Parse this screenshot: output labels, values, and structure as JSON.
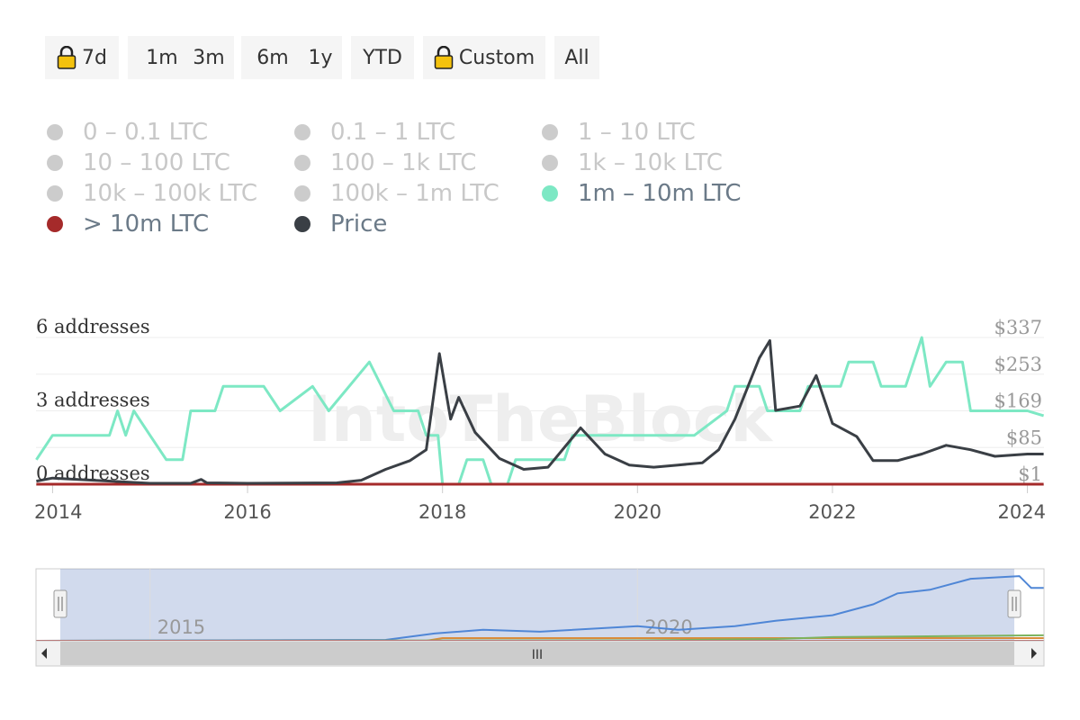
{
  "range_selector": {
    "buttons": [
      {
        "label": "7d",
        "locked": true
      },
      {
        "label": "1m",
        "locked": false
      },
      {
        "label": "3m",
        "locked": false
      },
      {
        "label": "6m",
        "locked": false
      },
      {
        "label": "1y",
        "locked": false
      },
      {
        "label": "YTD",
        "locked": false
      },
      {
        "label": "Custom",
        "locked": true
      },
      {
        "label": "All",
        "locked": false
      }
    ]
  },
  "legend": [
    {
      "label": "0 – 0.1 LTC",
      "color": "#cccccc",
      "enabled": false
    },
    {
      "label": "0.1 – 1 LTC",
      "color": "#cccccc",
      "enabled": false
    },
    {
      "label": "1 – 10 LTC",
      "color": "#cccccc",
      "enabled": false
    },
    {
      "label": "10 – 100 LTC",
      "color": "#cccccc",
      "enabled": false
    },
    {
      "label": "100 – 1k LTC",
      "color": "#cccccc",
      "enabled": false
    },
    {
      "label": "1k – 10k LTC",
      "color": "#cccccc",
      "enabled": false
    },
    {
      "label": "10k – 100k LTC",
      "color": "#cccccc",
      "enabled": false
    },
    {
      "label": "100k – 1m LTC",
      "color": "#cccccc",
      "enabled": false
    },
    {
      "label": "1m – 10m LTC",
      "color": "#7de8c4",
      "enabled": true
    },
    {
      "label": "> 10m LTC",
      "color": "#a52a2a",
      "enabled": true
    },
    {
      "label": "Price",
      "color": "#3a3f45",
      "enabled": true
    }
  ],
  "watermark": "IntoTheBlock",
  "chart_data": {
    "type": "line",
    "title": "",
    "x_ticks": [
      "2014",
      "2016",
      "2018",
      "2020",
      "2022",
      "2024"
    ],
    "y_left_ticks": [
      "0 addresses",
      "3 addresses",
      "6 addresses"
    ],
    "y_left_range": [
      0,
      6
    ],
    "y_right_ticks": [
      "$1",
      "$85",
      "$169",
      "$253",
      "$337"
    ],
    "y_right_range": [
      1,
      337
    ],
    "grid": true,
    "series": [
      {
        "name": "1m – 10m LTC",
        "axis": "left",
        "color": "#7de8c4",
        "points": [
          [
            "2013-11-01",
            1
          ],
          [
            "2014-01-01",
            2
          ],
          [
            "2014-08-01",
            2
          ],
          [
            "2014-09-01",
            3
          ],
          [
            "2014-10-01",
            2
          ],
          [
            "2014-11-01",
            3
          ],
          [
            "2015-01-01",
            2
          ],
          [
            "2015-03-01",
            1
          ],
          [
            "2015-05-01",
            1
          ],
          [
            "2015-06-01",
            3
          ],
          [
            "2015-09-01",
            3
          ],
          [
            "2015-10-01",
            4
          ],
          [
            "2016-03-01",
            4
          ],
          [
            "2016-05-01",
            3
          ],
          [
            "2016-09-01",
            4
          ],
          [
            "2016-11-01",
            3
          ],
          [
            "2017-04-01",
            5
          ],
          [
            "2017-07-01",
            3
          ],
          [
            "2017-10-01",
            3
          ],
          [
            "2017-11-01",
            2
          ],
          [
            "2017-12-15",
            2
          ],
          [
            "2018-01-01",
            0
          ],
          [
            "2018-03-01",
            0
          ],
          [
            "2018-04-01",
            1
          ],
          [
            "2018-06-01",
            1
          ],
          [
            "2018-07-01",
            0
          ],
          [
            "2018-09-01",
            0
          ],
          [
            "2018-10-01",
            1
          ],
          [
            "2019-02-01",
            1
          ],
          [
            "2019-04-01",
            1
          ],
          [
            "2019-05-01",
            2
          ],
          [
            "2020-08-01",
            2
          ],
          [
            "2020-12-01",
            3
          ],
          [
            "2021-01-01",
            4
          ],
          [
            "2021-04-01",
            4
          ],
          [
            "2021-05-01",
            3
          ],
          [
            "2021-09-01",
            3
          ],
          [
            "2021-10-01",
            4
          ],
          [
            "2022-02-01",
            4
          ],
          [
            "2022-03-01",
            5
          ],
          [
            "2022-06-01",
            5
          ],
          [
            "2022-07-01",
            4
          ],
          [
            "2022-10-01",
            4
          ],
          [
            "2022-12-01",
            6
          ],
          [
            "2023-01-01",
            4
          ],
          [
            "2023-03-01",
            5
          ],
          [
            "2023-05-01",
            5
          ],
          [
            "2023-06-01",
            3
          ],
          [
            "2024-01-01",
            3
          ],
          [
            "2024-03-01",
            2.8
          ]
        ]
      },
      {
        "name": "> 10m LTC",
        "axis": "left",
        "color": "#a52a2a",
        "points": [
          [
            "2013-11-01",
            0
          ],
          [
            "2024-03-01",
            0
          ]
        ]
      },
      {
        "name": "Price",
        "axis": "right",
        "color": "#3a3f45",
        "points": [
          [
            "2013-11-01",
            8
          ],
          [
            "2014-01-01",
            15
          ],
          [
            "2014-06-01",
            10
          ],
          [
            "2015-01-01",
            3
          ],
          [
            "2015-06-01",
            3
          ],
          [
            "2015-07-10",
            12
          ],
          [
            "2015-08-01",
            4
          ],
          [
            "2016-01-01",
            3
          ],
          [
            "2016-12-01",
            4
          ],
          [
            "2017-03-01",
            10
          ],
          [
            "2017-06-01",
            35
          ],
          [
            "2017-09-01",
            55
          ],
          [
            "2017-11-01",
            80
          ],
          [
            "2017-12-20",
            300
          ],
          [
            "2018-02-01",
            150
          ],
          [
            "2018-03-01",
            200
          ],
          [
            "2018-05-01",
            120
          ],
          [
            "2018-08-01",
            60
          ],
          [
            "2018-11-01",
            35
          ],
          [
            "2019-02-01",
            40
          ],
          [
            "2019-06-01",
            130
          ],
          [
            "2019-09-01",
            70
          ],
          [
            "2019-12-01",
            45
          ],
          [
            "2020-03-01",
            40
          ],
          [
            "2020-06-01",
            45
          ],
          [
            "2020-09-01",
            50
          ],
          [
            "2020-11-01",
            80
          ],
          [
            "2021-01-01",
            150
          ],
          [
            "2021-04-01",
            290
          ],
          [
            "2021-05-10",
            330
          ],
          [
            "2021-06-01",
            170
          ],
          [
            "2021-09-01",
            180
          ],
          [
            "2021-11-01",
            250
          ],
          [
            "2022-01-01",
            140
          ],
          [
            "2022-04-01",
            110
          ],
          [
            "2022-06-01",
            55
          ],
          [
            "2022-09-01",
            55
          ],
          [
            "2022-12-01",
            70
          ],
          [
            "2023-03-01",
            90
          ],
          [
            "2023-06-01",
            80
          ],
          [
            "2023-09-01",
            65
          ],
          [
            "2024-01-01",
            70
          ],
          [
            "2024-03-01",
            70
          ]
        ]
      }
    ]
  },
  "navigator": {
    "x_labels": [
      "2015",
      "2020"
    ],
    "scroll_thumb_label": "III",
    "series": [
      {
        "color": "#4f86d6",
        "points": [
          [
            "2013-11-01",
            0
          ],
          [
            "2017-06-01",
            1
          ],
          [
            "2017-12-01",
            8
          ],
          [
            "2018-06-01",
            12
          ],
          [
            "2019-01-01",
            10
          ],
          [
            "2020-01-01",
            16
          ],
          [
            "2020-06-01",
            12
          ],
          [
            "2021-01-01",
            16
          ],
          [
            "2021-06-01",
            22
          ],
          [
            "2022-01-01",
            28
          ],
          [
            "2022-06-01",
            40
          ],
          [
            "2022-09-01",
            52
          ],
          [
            "2023-01-01",
            56
          ],
          [
            "2023-06-01",
            68
          ],
          [
            "2023-12-01",
            71
          ],
          [
            "2024-01-15",
            58
          ],
          [
            "2024-03-01",
            58
          ]
        ]
      },
      {
        "color": "#d98c3b",
        "points": [
          [
            "2013-11-01",
            0
          ],
          [
            "2017-11-01",
            0
          ],
          [
            "2018-01-01",
            3
          ],
          [
            "2024-03-01",
            3
          ]
        ]
      },
      {
        "color": "#7cb35e",
        "points": [
          [
            "2013-11-01",
            0
          ],
          [
            "2020-01-01",
            0.5
          ],
          [
            "2021-06-01",
            2
          ],
          [
            "2022-01-01",
            4
          ],
          [
            "2024-03-01",
            6
          ]
        ]
      },
      {
        "color": "#a52a2a",
        "points": [
          [
            "2013-11-01",
            0
          ],
          [
            "2024-03-01",
            0
          ]
        ]
      }
    ]
  }
}
